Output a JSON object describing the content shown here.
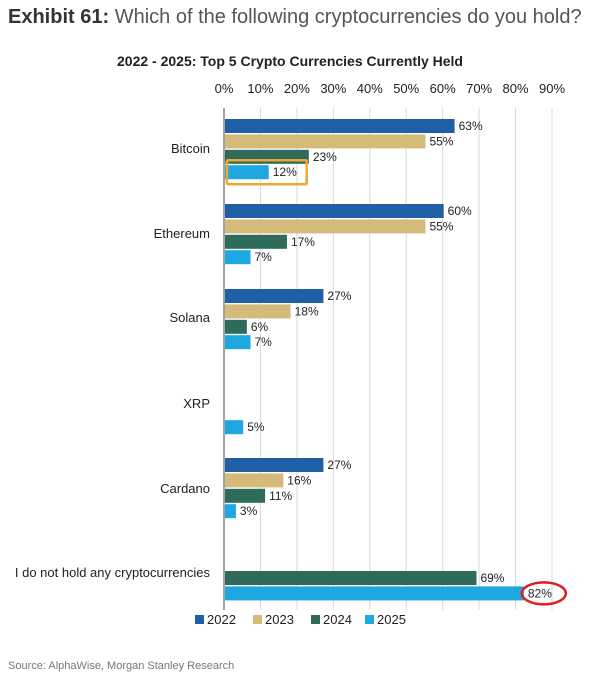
{
  "exhibit": {
    "label": "Exhibit 61:",
    "question": "Which of the following cryptocurrencies do you hold?"
  },
  "source": "Source: AlphaWise, Morgan Stanley Research",
  "chart_data": {
    "type": "bar",
    "orientation": "horizontal",
    "title": "2022 - 2025: Top 5 Crypto Currencies Currently Held",
    "xlabel": "",
    "ylabel": "",
    "xlim": [
      0,
      90
    ],
    "ticks": [
      "0%",
      "10%",
      "20%",
      "30%",
      "40%",
      "50%",
      "60%",
      "70%",
      "80%",
      "90%"
    ],
    "grid": true,
    "legend_position": "bottom",
    "categories": [
      "Bitcoin",
      "Ethereum",
      "Solana",
      "XRP",
      "Cardano",
      "I do not hold any cryptocurrencies"
    ],
    "series": [
      {
        "name": "2022",
        "color": "#1f5fa6",
        "values": [
          63,
          60,
          27,
          null,
          27,
          null
        ]
      },
      {
        "name": "2023",
        "color": "#d4bb79",
        "values": [
          55,
          55,
          18,
          null,
          16,
          null
        ]
      },
      {
        "name": "2024",
        "color": "#2e6b5a",
        "values": [
          23,
          17,
          6,
          null,
          11,
          69
        ]
      },
      {
        "name": "2025",
        "color": "#1ea7e1",
        "values": [
          12,
          7,
          7,
          5,
          3,
          82
        ]
      }
    ],
    "data_labels": [
      [
        "63%",
        "55%",
        "23%",
        "12%"
      ],
      [
        "60%",
        "55%",
        "17%",
        "7%"
      ],
      [
        "27%",
        "18%",
        "6%",
        "7%"
      ],
      [
        "",
        "",
        "",
        "5%"
      ],
      [
        "27%",
        "16%",
        "11%",
        "3%"
      ],
      [
        "",
        "",
        "69%",
        "82%"
      ]
    ],
    "highlights": [
      {
        "category": "Bitcoin",
        "series": "2025",
        "style": "orange-box",
        "color": "#f0a830"
      },
      {
        "category": "I do not hold any cryptocurrencies",
        "series": "2025",
        "style": "red-circle",
        "color": "#e02020"
      }
    ]
  }
}
